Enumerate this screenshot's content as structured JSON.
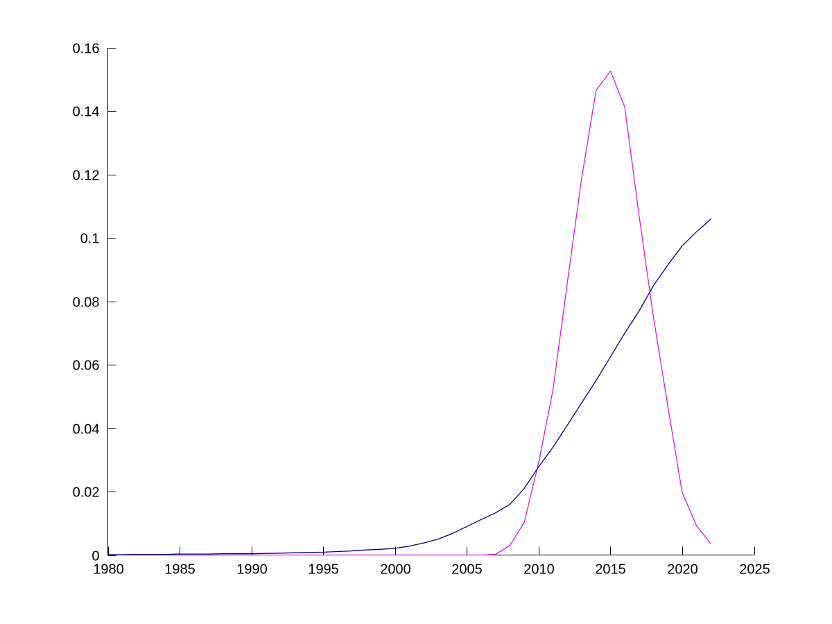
{
  "figure": {
    "background": "#ffffff",
    "title": ""
  },
  "chart_data": {
    "type": "line",
    "title": "",
    "xlabel": "",
    "ylabel": "",
    "xlim": [
      1980,
      2025
    ],
    "ylim": [
      0,
      0.16
    ],
    "grid": false,
    "legend": "none",
    "axis_style": "L-shaped spines, inward ticks, no box, no gridlines",
    "x_ticks": [
      1980,
      1985,
      1990,
      1995,
      2000,
      2005,
      2010,
      2015,
      2020,
      2025
    ],
    "x_tick_labels": [
      "1980",
      "1985",
      "1990",
      "1995",
      "2000",
      "2005",
      "2010",
      "2015",
      "2020",
      "2025"
    ],
    "y_ticks": [
      0,
      0.02,
      0.04,
      0.06,
      0.08,
      0.1,
      0.12,
      0.14,
      0.16
    ],
    "y_tick_labels": [
      "0",
      "0.02",
      "0.04",
      "0.06",
      "0.08",
      "0.1",
      "0.12",
      "0.14",
      "0.16"
    ],
    "x": [
      1980,
      1981,
      1982,
      1983,
      1984,
      1985,
      1986,
      1987,
      1988,
      1989,
      1990,
      1991,
      1992,
      1993,
      1994,
      1995,
      1996,
      1997,
      1998,
      1999,
      2000,
      2001,
      2002,
      2003,
      2004,
      2005,
      2006,
      2007,
      2008,
      2009,
      2010,
      2011,
      2012,
      2013,
      2014,
      2015,
      2016,
      2017,
      2018,
      2019,
      2020,
      2021,
      2022
    ],
    "series": [
      {
        "name": "magenta-bell-curve",
        "color": "#e213e2",
        "values": [
          0,
          0,
          0,
          0,
          0,
          0,
          0,
          0,
          0,
          0,
          0,
          0,
          0,
          0,
          0,
          0,
          0,
          0,
          0,
          0,
          0,
          0,
          0,
          0,
          0,
          0,
          0,
          0.0002,
          0.003,
          0.0103,
          0.029,
          0.052,
          0.086,
          0.119,
          0.1465,
          0.1527,
          0.1413,
          0.107,
          0.075,
          0.047,
          0.0197,
          0.0092,
          0.0035
        ]
      },
      {
        "name": "dark-blue-rising-curve",
        "color": "#000085",
        "values": [
          0.0001,
          0.0001,
          0.0002,
          0.0002,
          0.0002,
          0.0003,
          0.0003,
          0.0003,
          0.0004,
          0.0004,
          0.0004,
          0.0005,
          0.0006,
          0.0007,
          0.0008,
          0.0009,
          0.0011,
          0.0013,
          0.0016,
          0.0018,
          0.0021,
          0.0028,
          0.0038,
          0.005,
          0.0068,
          0.009,
          0.0112,
          0.0133,
          0.016,
          0.021,
          0.0278,
          0.034,
          0.041,
          0.048,
          0.055,
          0.0625,
          0.07,
          0.077,
          0.085,
          0.0915,
          0.0975,
          0.102,
          0.106
        ]
      }
    ],
    "annotations": {
      "peak": {
        "series": "magenta-bell-curve",
        "x": 2015,
        "y": 0.153
      },
      "end_value": {
        "series": "dark-blue-rising-curve",
        "x": 2022,
        "y": 0.106
      }
    }
  }
}
